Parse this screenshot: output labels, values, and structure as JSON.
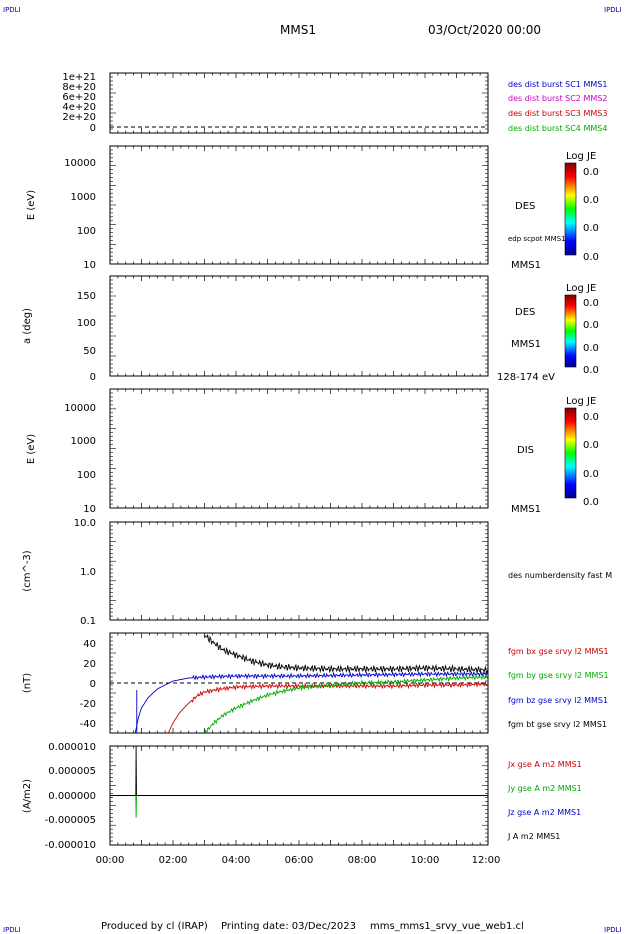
{
  "header": {
    "ipdli_label": "IPDLI",
    "spacecraft": "MMS1",
    "datetime": "03/Oct/2020 00:00"
  },
  "footer": {
    "produced_by": "Produced by cl (IRAP)",
    "printing_date": "Printing date: 03/Dec/2023",
    "product": "mms_mms1_srvy_vue_web1.cl"
  },
  "colorbar": {
    "title": "Log JE",
    "values": [
      "0.0",
      "0.0",
      "0.0",
      "0.0"
    ]
  },
  "panels": {
    "p1": {
      "y_ticks": [
        "1e+21",
        "8e+20",
        "6e+20",
        "4e+20",
        "2e+20",
        "0"
      ],
      "legend": [
        {
          "text": "des dist burst SC1 MMS1",
          "color": "#0000cc"
        },
        {
          "text": "des dist burst SC2 MMS2",
          "color": "#cc00cc"
        },
        {
          "text": "des dist burst SC3 MMS3",
          "color": "#cc0000"
        },
        {
          "text": "des dist burst SC4 MMS4",
          "color": "#00aa00"
        }
      ]
    },
    "p2": {
      "ylabel": "E (eV)",
      "y_ticks": [
        "10000",
        "1000",
        "100",
        "10"
      ],
      "label": "DES",
      "sublabel": "edp scpot MMS1",
      "sc": "MMS1"
    },
    "p3": {
      "ylabel": "a (deg)",
      "y_ticks": [
        "150",
        "100",
        "50",
        "0"
      ],
      "label": "DES",
      "sc": "MMS1",
      "range": "128-174 eV"
    },
    "p4": {
      "ylabel": "E (eV)",
      "y_ticks": [
        "10000",
        "1000",
        "100",
        "10"
      ],
      "label": "DIS",
      "sc": "MMS1"
    },
    "p5": {
      "ylabel": "(cm^-3)",
      "y_ticks": [
        "10.0",
        "1.0",
        "0.1"
      ],
      "label": "des numberdensity fast M"
    },
    "p6": {
      "ylabel": "(nT)",
      "y_ticks": [
        "40",
        "20",
        "0",
        "-20",
        "-40"
      ],
      "legend": [
        {
          "text": "fgm bx gse srvy l2 MMS1",
          "color": "#cc0000"
        },
        {
          "text": "fgm by gse srvy l2 MMS1",
          "color": "#00aa00"
        },
        {
          "text": "fgm bz gse srvy l2 MMS1",
          "color": "#0000cc"
        },
        {
          "text": "fgm bt gse srvy l2 MMS1",
          "color": "#000000"
        }
      ]
    },
    "p7": {
      "ylabel": "(A/m2)",
      "y_ticks": [
        "0.000010",
        "0.000005",
        "0.000000",
        "-0.000005",
        "-0.000010"
      ],
      "legend": [
        {
          "text": "Jx gse A m2 MMS1",
          "color": "#cc0000"
        },
        {
          "text": "Jy gse A m2 MMS1",
          "color": "#00aa00"
        },
        {
          "text": "Jz gse A m2 MMS1",
          "color": "#0000cc"
        },
        {
          "text": "J A m2 MMS1",
          "color": "#000000"
        }
      ]
    }
  },
  "x_ticks": [
    "00:00",
    "02:00",
    "04:00",
    "06:00",
    "08:00",
    "10:00",
    "12:00"
  ],
  "chart_data": [
    {
      "type": "line",
      "title": "",
      "xlabel": "",
      "ylabel": "(nT)",
      "x_range": [
        "00:00",
        "12:00"
      ],
      "ylim": [
        -50,
        50
      ],
      "series": [
        {
          "name": "fgm bx gse srvy l2 MMS1",
          "color": "#cc0000",
          "x": [
            1.85,
            2.0,
            2.2,
            2.5,
            2.8,
            3.0,
            3.5,
            4.0,
            5.0,
            6.0,
            7.0,
            8.0,
            9.0,
            10.0,
            11.0,
            12.0
          ],
          "y": [
            -50,
            -40,
            -30,
            -20,
            -12,
            -9,
            -6,
            -4,
            -3,
            -3,
            -3,
            -3,
            -3,
            -2,
            -2,
            -1
          ]
        },
        {
          "name": "fgm by gse srvy l2 MMS1",
          "color": "#00aa00",
          "x": [
            3.0,
            3.3,
            3.6,
            4.0,
            4.5,
            5.0,
            5.5,
            6.0,
            7.0,
            8.0,
            9.0,
            10.0,
            11.0,
            12.0
          ],
          "y": [
            -50,
            -40,
            -32,
            -25,
            -18,
            -12,
            -8,
            -5,
            -2,
            0,
            1,
            3,
            5,
            6
          ]
        },
        {
          "name": "fgm bz gse srvy l2 MMS1",
          "color": "#0000cc",
          "x": [
            0.8,
            0.9,
            1.0,
            1.2,
            1.5,
            2.0,
            2.5,
            3.0,
            4.0,
            6.0,
            8.0,
            10.0,
            12.0
          ],
          "y": [
            -50,
            -35,
            -25,
            -15,
            -6,
            2,
            5,
            6,
            7,
            7,
            8,
            9,
            9
          ]
        },
        {
          "name": "fgm bt gse srvy l2 MMS1",
          "color": "#000000",
          "x": [
            3.0,
            3.3,
            3.6,
            4.0,
            4.5,
            5.0,
            5.5,
            6.0,
            7.0,
            8.0,
            9.0,
            10.0,
            11.0,
            12.0
          ],
          "y": [
            48,
            40,
            33,
            28,
            22,
            18,
            16,
            15,
            14,
            14,
            14,
            15,
            14,
            13
          ]
        }
      ]
    },
    {
      "type": "line",
      "title": "",
      "xlabel": "",
      "ylabel": "(A/m2)",
      "x_range": [
        "00:00",
        "12:00"
      ],
      "ylim": [
        -1e-05,
        1e-05
      ],
      "series": [
        {
          "name": "Jx gse A m2 MMS1",
          "color": "#cc0000",
          "x": [
            0.0,
            12.0
          ],
          "y": [
            0.0,
            0.0
          ]
        },
        {
          "name": "Jy gse A m2 MMS1",
          "color": "#00aa00",
          "x": [
            0.0,
            0.82,
            0.83,
            0.84,
            12.0
          ],
          "y": [
            0.0,
            0.0,
            -4.5e-06,
            0.0,
            0.0
          ]
        },
        {
          "name": "Jz gse A m2 MMS1",
          "color": "#0000cc",
          "x": [
            0.0,
            12.0
          ],
          "y": [
            0.0,
            0.0
          ]
        },
        {
          "name": "J A m2 MMS1",
          "color": "#000000",
          "x": [
            0.0,
            0.82,
            0.83,
            0.84,
            12.0
          ],
          "y": [
            0.0,
            0.0,
            1e-05,
            0.0,
            0.0
          ]
        }
      ]
    }
  ]
}
